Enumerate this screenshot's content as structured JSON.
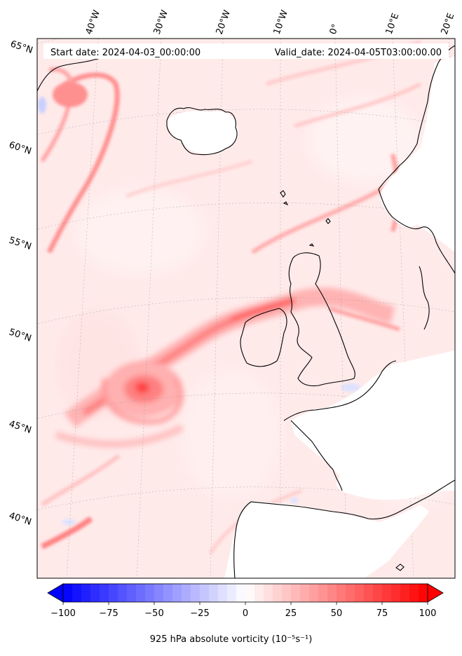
{
  "header": {
    "start_date": "Start date: 2024-04-03_00:00:00",
    "valid_date": "Valid_date: 2024-04-05T03:00:00.00"
  },
  "longitude_labels": [
    "40°W",
    "30°W",
    "20°W",
    "10°W",
    "0°",
    "10°E",
    "20°E"
  ],
  "latitude_labels": [
    "65°N",
    "60°N",
    "55°N",
    "50°N",
    "45°N",
    "40°N"
  ],
  "colorbar": {
    "ticks": [
      "−100",
      "−75",
      "−50",
      "−25",
      "0",
      "25",
      "50",
      "75",
      "100"
    ],
    "min": -100,
    "max": 100,
    "low_color": "#0000ff",
    "mid_color": "#ffffff",
    "high_color": "#ff0000",
    "extend": "both"
  },
  "colorbar_title": "925 hPa absolute vorticity (10⁻⁵s⁻¹)",
  "colors": {
    "background_field": "#ffeaea",
    "coastline": "#000000"
  }
}
